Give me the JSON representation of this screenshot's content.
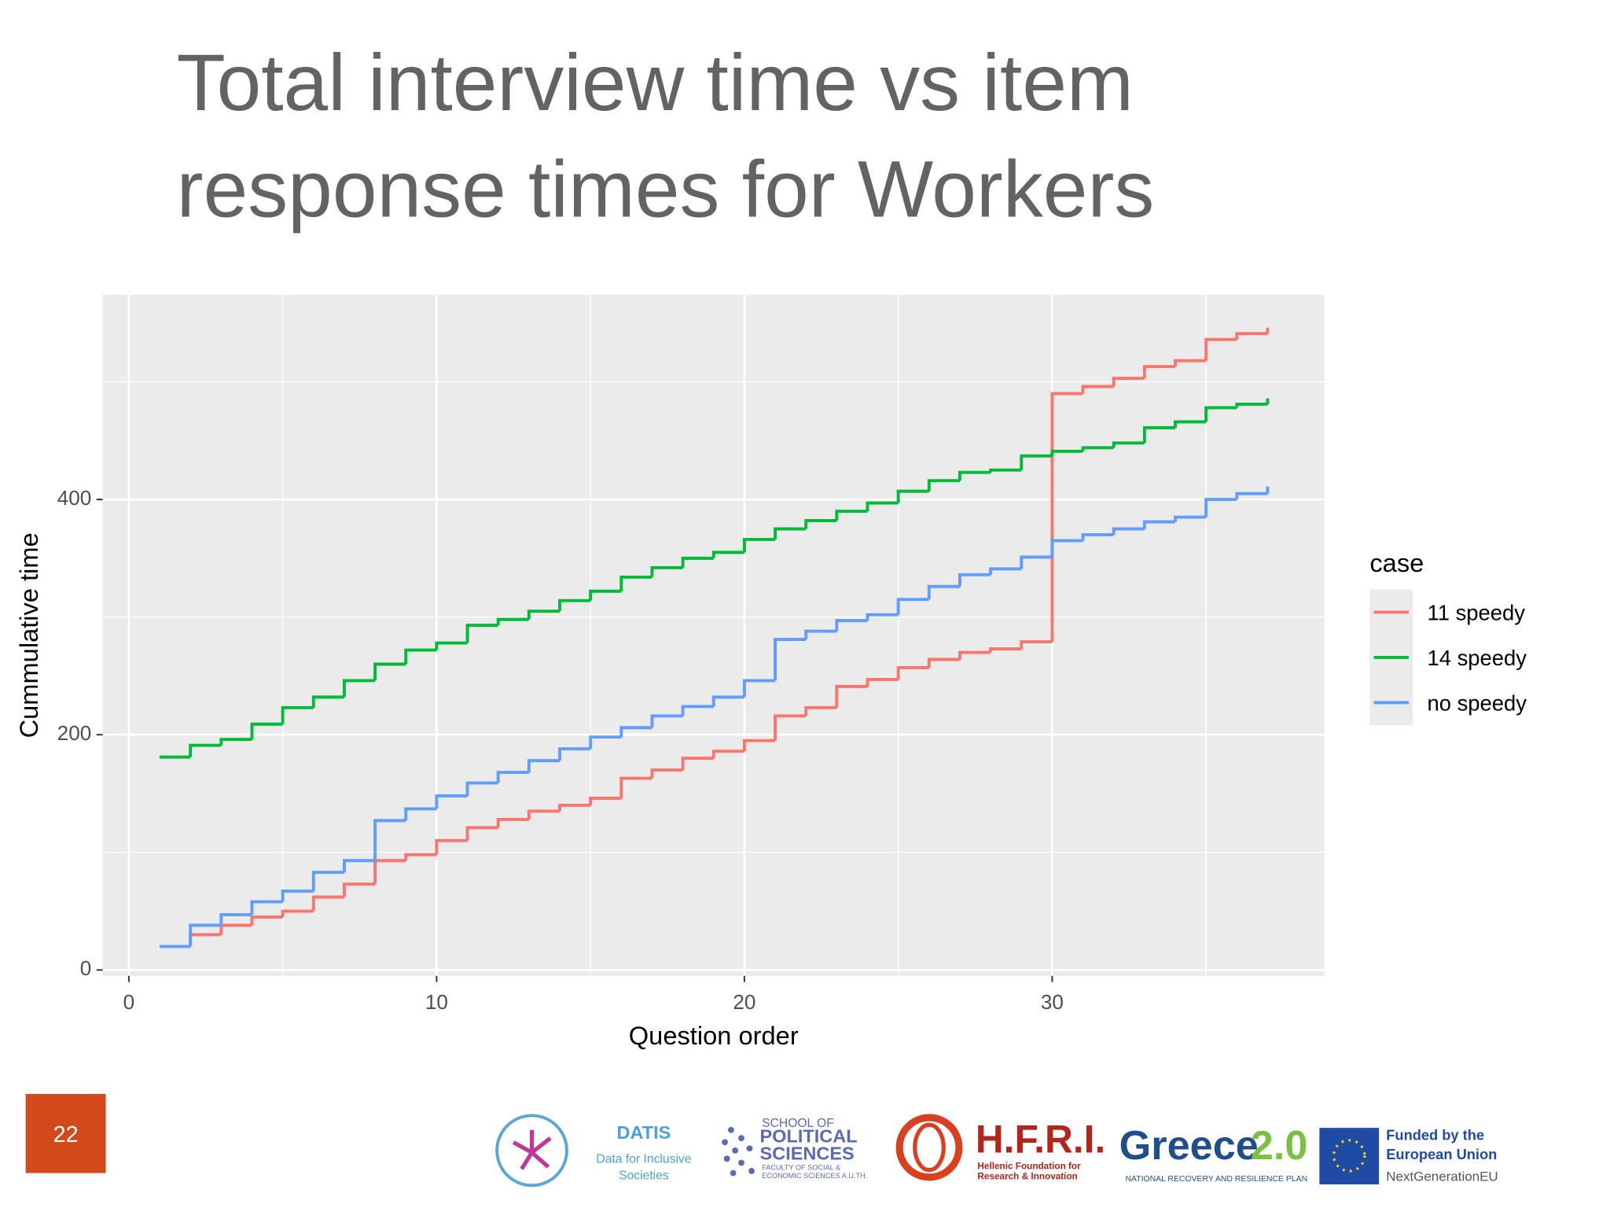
{
  "chart_data": {
    "type": "step",
    "title": "Total interview time vs item response times for Workers",
    "x_label": "Question order",
    "y_label": "Cummulative time",
    "legend_title": "case",
    "legend": "right",
    "x": [
      1,
      2,
      3,
      4,
      5,
      6,
      7,
      8,
      9,
      10,
      11,
      12,
      13,
      14,
      15,
      16,
      17,
      18,
      19,
      20,
      21,
      22,
      23,
      24,
      25,
      26,
      27,
      28,
      29,
      30,
      31,
      32,
      33,
      34,
      35,
      36,
      37
    ],
    "series": [
      {
        "name": "11 speedy",
        "color": "#f8766d",
        "values": [
          20,
          30,
          38,
          45,
          50,
          62,
          73,
          93,
          98,
          110,
          121,
          128,
          135,
          140,
          146,
          163,
          170,
          180,
          186,
          195,
          216,
          223,
          241,
          247,
          257,
          264,
          270,
          273,
          279,
          490,
          496,
          503,
          513,
          518,
          536,
          541,
          546
        ]
      },
      {
        "name": "14 speedy",
        "color": "#00ba38",
        "values": [
          181,
          191,
          196,
          209,
          223,
          232,
          246,
          260,
          272,
          278,
          293,
          298,
          305,
          314,
          322,
          334,
          342,
          350,
          355,
          366,
          375,
          382,
          390,
          397,
          407,
          416,
          423,
          425,
          437,
          441,
          444,
          448,
          461,
          466,
          478,
          481,
          486
        ]
      },
      {
        "name": "no speedy",
        "color": "#619cff",
        "values": [
          20,
          38,
          47,
          58,
          67,
          83,
          93,
          127,
          137,
          148,
          159,
          168,
          178,
          188,
          198,
          206,
          216,
          224,
          232,
          246,
          281,
          288,
          297,
          302,
          315,
          326,
          336,
          341,
          351,
          365,
          370,
          375,
          381,
          385,
          400,
          405,
          411
        ]
      }
    ],
    "xlim": [
      -0.85,
      38.85
    ],
    "ylim": [
      -5,
      574
    ],
    "xticks": [
      0,
      10,
      20,
      30
    ],
    "yticks": [
      0,
      200,
      400
    ],
    "x_minor_ticks": [
      5,
      15,
      25,
      35
    ],
    "y_minor_ticks": [
      100,
      300,
      500
    ],
    "grid": true,
    "panel_color": "#ebebeb"
  },
  "footer": {
    "page_number": "22",
    "datis": "DATIS",
    "datis_sub": "Data for Inclusive Societies",
    "school_top": "SCHOOL OF",
    "school_main": "POLITICAL SCIENCES",
    "school_sub": "FACULTY OF SOCIAL & ECONOMIC SCIENCES A.U.TH.",
    "hfri": "H.F.R.I.",
    "hfri_sub": "Hellenic Foundation for Research & Innovation",
    "greece": "Greece",
    "greece_num": "2.0",
    "greece_sub": "NATIONAL RECOVERY AND RESILIENCE PLAN",
    "eu_line1": "Funded by the",
    "eu_line2": "European Union",
    "eu_line3": "NextGenerationEU"
  }
}
